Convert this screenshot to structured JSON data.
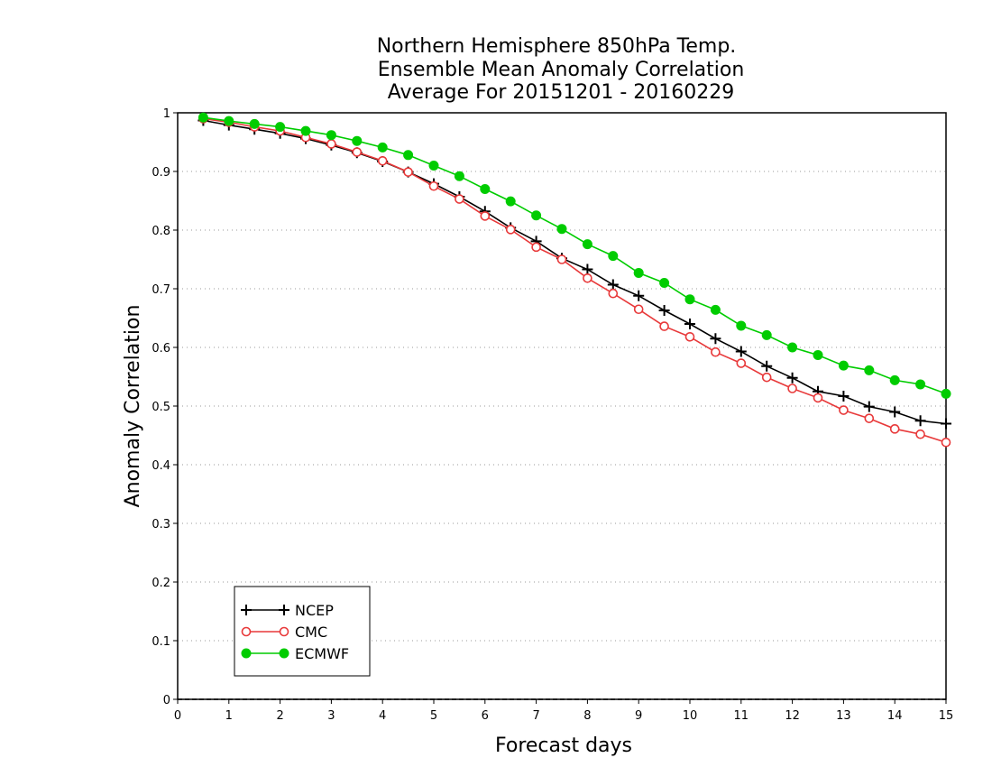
{
  "chart_data": {
    "type": "line",
    "title_lines": [
      "Northern Hemisphere 850hPa Temp.",
      "Ensemble Mean Anomaly Correlation",
      "Average For 20151201 - 20160229"
    ],
    "xlabel": "Forecast days",
    "ylabel": "Anomaly Correlation",
    "xlim": [
      0,
      15
    ],
    "ylim": [
      0,
      1
    ],
    "xticks": [
      "0",
      "1",
      "2",
      "3",
      "4",
      "5",
      "6",
      "7",
      "8",
      "9",
      "10",
      "11",
      "12",
      "13",
      "14",
      "15"
    ],
    "yticks": [
      "0",
      "0.1",
      "0.2",
      "0.3",
      "0.4",
      "0.5",
      "0.6",
      "0.7",
      "0.8",
      "0.9",
      "1"
    ],
    "grid": "horizontal-dotted",
    "legend_position": "bottom-left",
    "x": [
      0.5,
      1,
      1.5,
      2,
      2.5,
      3,
      3.5,
      4,
      4.5,
      5,
      5.5,
      6,
      6.5,
      7,
      7.5,
      8,
      8.5,
      9,
      9.5,
      10,
      10.5,
      11,
      11.5,
      12,
      12.5,
      13,
      13.5,
      14,
      14.5,
      15
    ],
    "series": [
      {
        "name": "NCEP",
        "color": "#000000",
        "marker": "plus",
        "values": [
          0.987,
          0.979,
          0.972,
          0.965,
          0.956,
          0.945,
          0.932,
          0.917,
          0.899,
          0.879,
          0.857,
          0.832,
          0.804,
          0.781,
          0.752,
          0.733,
          0.707,
          0.688,
          0.663,
          0.64,
          0.615,
          0.593,
          0.568,
          0.548,
          0.525,
          0.517,
          0.499,
          0.49,
          0.475,
          0.47
        ]
      },
      {
        "name": "CMC",
        "color": "#e8393a",
        "marker": "open-circle",
        "values": [
          0.99,
          0.984,
          0.976,
          0.969,
          0.958,
          0.947,
          0.933,
          0.918,
          0.899,
          0.875,
          0.853,
          0.824,
          0.801,
          0.771,
          0.75,
          0.718,
          0.692,
          0.665,
          0.636,
          0.618,
          0.592,
          0.573,
          0.549,
          0.53,
          0.514,
          0.493,
          0.479,
          0.461,
          0.452,
          0.438
        ]
      },
      {
        "name": "ECMWF",
        "color": "#00cc00",
        "marker": "filled-circle",
        "values": [
          0.992,
          0.986,
          0.981,
          0.976,
          0.969,
          0.962,
          0.952,
          0.941,
          0.928,
          0.91,
          0.892,
          0.87,
          0.849,
          0.825,
          0.802,
          0.776,
          0.756,
          0.727,
          0.71,
          0.682,
          0.664,
          0.637,
          0.621,
          0.6,
          0.587,
          0.569,
          0.561,
          0.544,
          0.537,
          0.521
        ]
      }
    ]
  }
}
